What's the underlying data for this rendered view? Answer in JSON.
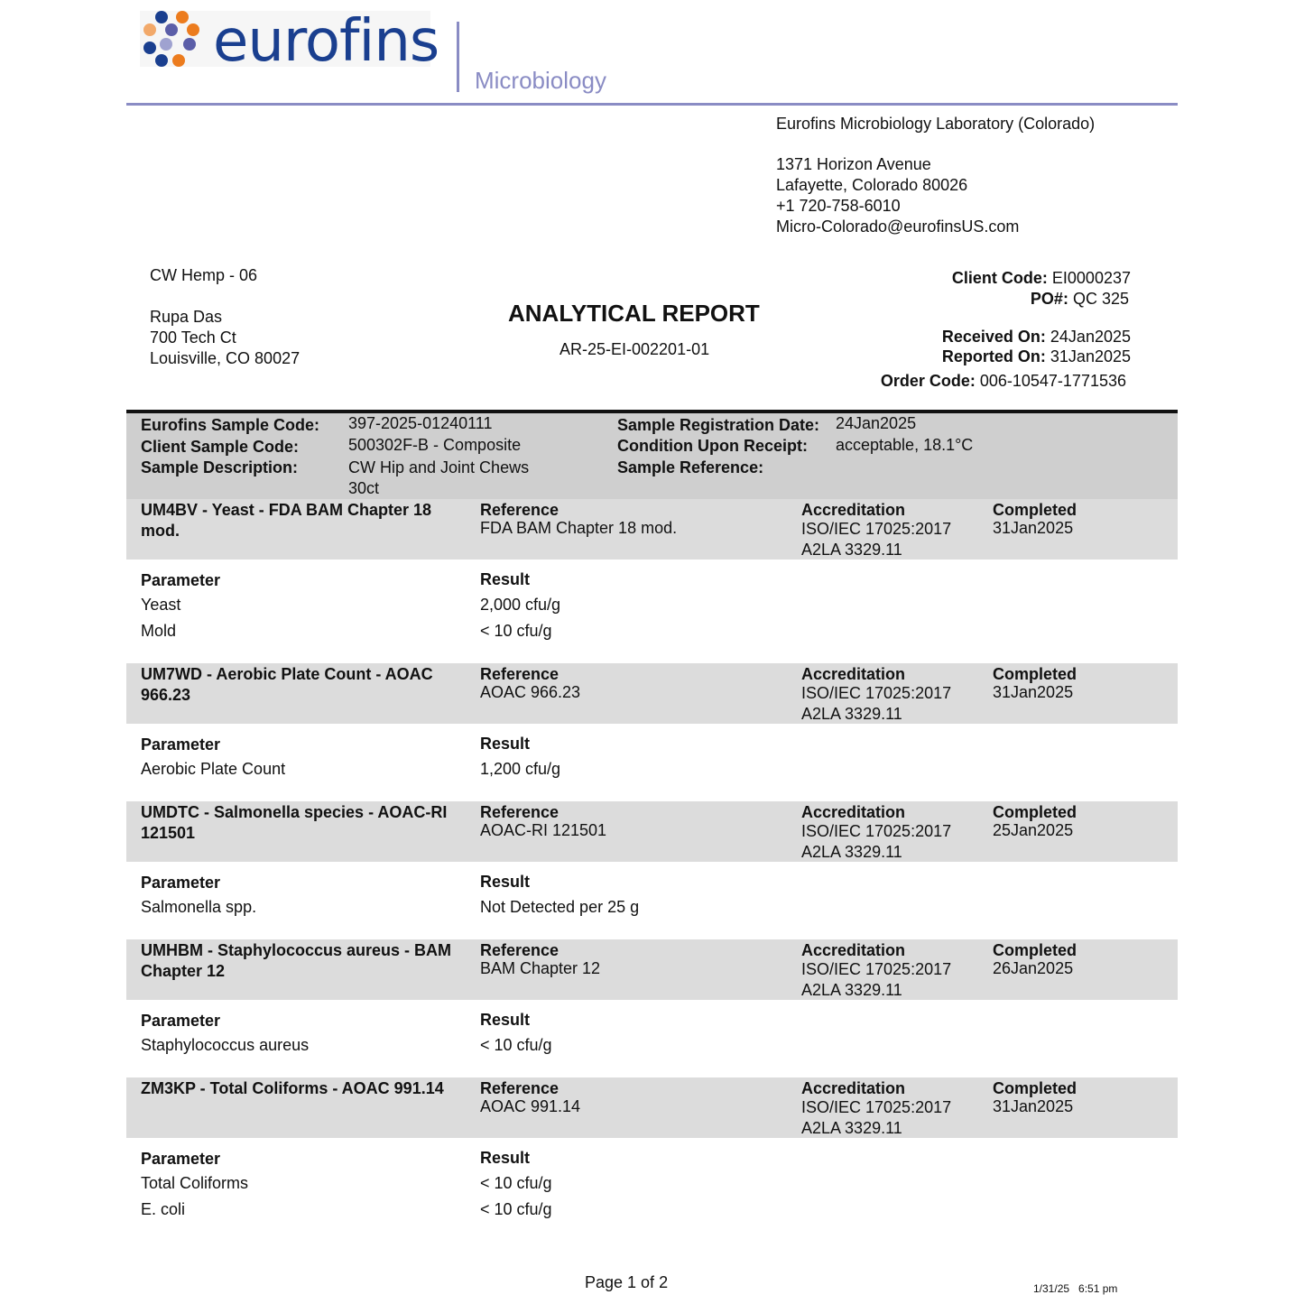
{
  "header": {
    "brand": "eurofins",
    "division": "Microbiology",
    "colors": {
      "brand_blue": "#1a3f8f",
      "orange": "#ec7c1e",
      "lavender": "#8a8cc4"
    }
  },
  "lab": {
    "name": "Eurofins Microbiology Laboratory (Colorado)",
    "address1": "1371 Horizon Avenue",
    "address2": "Lafayette, Colorado 80026",
    "phone": "+1 720-758-6010",
    "email": "Micro-Colorado@eurofinsUS.com"
  },
  "client": {
    "company": "CW Hemp - 06",
    "contact": "Rupa Das",
    "street": "700 Tech Ct",
    "city": "Louisville, CO 80027"
  },
  "report": {
    "title": "ANALYTICAL REPORT",
    "number": "AR-25-EI-002201-01"
  },
  "meta": {
    "client_code_label": "Client Code:",
    "client_code": "EI0000237",
    "po_label": "PO#:",
    "po": "QC 325",
    "received_label": "Received On:",
    "received": "24Jan2025",
    "reported_label": "Reported On:",
    "reported": "31Jan2025",
    "order_label": "Order Code:",
    "order": "006-10547-1771536"
  },
  "sample": {
    "code_label": "Eurofins Sample Code:",
    "code": "397-2025-01240111",
    "client_code_label": "Client Sample Code:",
    "client_code": "500302F-B - Composite",
    "desc_label": "Sample Description:",
    "desc1": "CW Hip and Joint Chews",
    "desc2": "30ct",
    "reg_label": "Sample Registration Date:",
    "reg": "24Jan2025",
    "cond_label": "Condition Upon Receipt:",
    "cond": "acceptable, 18.1°C",
    "ref_label": "Sample Reference:"
  },
  "labels": {
    "reference": "Reference",
    "accreditation": "Accreditation",
    "completed": "Completed",
    "parameter": "Parameter",
    "result": "Result"
  },
  "sections": [
    {
      "title1": "UM4BV - Yeast - FDA BAM Chapter 18",
      "title2": "mod.",
      "reference": "FDA BAM Chapter 18 mod.",
      "accr1": "ISO/IEC 17025:2017",
      "accr2": "A2LA 3329.11",
      "completed": "31Jan2025",
      "rows": [
        {
          "param": "Yeast",
          "result": "2,000 cfu/g"
        },
        {
          "param": "Mold",
          "result": "< 10 cfu/g"
        }
      ]
    },
    {
      "title1": "UM7WD - Aerobic Plate Count - AOAC",
      "title2": "966.23",
      "reference": "AOAC 966.23",
      "accr1": "ISO/IEC 17025:2017",
      "accr2": "A2LA 3329.11",
      "completed": "31Jan2025",
      "rows": [
        {
          "param": "Aerobic Plate Count",
          "result": "1,200 cfu/g"
        }
      ]
    },
    {
      "title1": "UMDTC - Salmonella species - AOAC-RI",
      "title2": "121501",
      "reference": "AOAC-RI 121501",
      "accr1": "ISO/IEC 17025:2017",
      "accr2": "A2LA 3329.11",
      "completed": "25Jan2025",
      "rows": [
        {
          "param": "Salmonella spp.",
          "result": "Not Detected per 25 g"
        }
      ]
    },
    {
      "title1": "UMHBM - Staphylococcus aureus - BAM",
      "title2": "Chapter 12",
      "reference": "BAM Chapter 12",
      "accr1": "ISO/IEC 17025:2017",
      "accr2": "A2LA 3329.11",
      "completed": "26Jan2025",
      "rows": [
        {
          "param": "Staphylococcus aureus",
          "result": "< 10 cfu/g"
        }
      ]
    },
    {
      "title1": "ZM3KP - Total Coliforms - AOAC 991.14",
      "title2": "",
      "reference": "AOAC 991.14",
      "accr1": "ISO/IEC 17025:2017",
      "accr2": "A2LA 3329.11",
      "completed": "31Jan2025",
      "rows": [
        {
          "param": "Total Coliforms",
          "result": "< 10 cfu/g"
        },
        {
          "param": "E. coli",
          "result": "< 10 cfu/g"
        }
      ]
    }
  ],
  "footer": {
    "page": "Page 1 of 2",
    "timestamp": "1/31/25   6:51 pm"
  }
}
